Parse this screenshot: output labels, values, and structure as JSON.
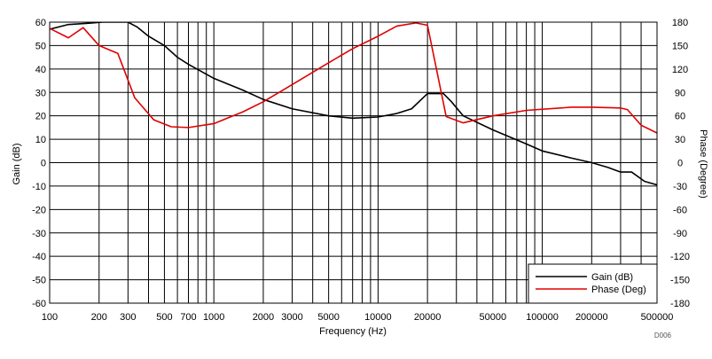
{
  "chart_data": {
    "type": "line",
    "xscale": "log",
    "xlim": [
      100,
      500000
    ],
    "x_ticks": [
      100,
      200,
      300,
      500,
      700,
      1000,
      2000,
      3000,
      5000,
      10000,
      20000,
      50000,
      100000,
      200000,
      500000
    ],
    "x_tick_labels": [
      "100",
      "200",
      "300",
      "500",
      "700",
      "1000",
      "2000",
      "3000",
      "5000",
      "10000",
      "20000",
      "50000",
      "100000",
      "200000",
      "500000"
    ],
    "y_left": {
      "label": "Gain (dB)",
      "lim": [
        -60,
        60
      ],
      "ticks": [
        60,
        50,
        40,
        30,
        20,
        10,
        0,
        -10,
        -20,
        -30,
        -40,
        -50,
        -60
      ]
    },
    "y_right": {
      "label": "Phase (Degree)",
      "lim": [
        -180,
        180
      ],
      "ticks": [
        180,
        150,
        120,
        90,
        60,
        30,
        0,
        -30,
        -60,
        -90,
        -120,
        -150,
        -180
      ]
    },
    "xlabel": "Frequency (Hz)",
    "grid": true,
    "legend_position": "bottom-right",
    "footnote": "D006",
    "series": [
      {
        "name": "Gain (dB)",
        "axis": "left",
        "color": "#000000",
        "points": [
          [
            100,
            57
          ],
          [
            130,
            59
          ],
          [
            170,
            59.5
          ],
          [
            210,
            60
          ],
          [
            300,
            60
          ],
          [
            340,
            58
          ],
          [
            400,
            54
          ],
          [
            500,
            50
          ],
          [
            600,
            45
          ],
          [
            700,
            42
          ],
          [
            1000,
            36
          ],
          [
            1500,
            31
          ],
          [
            2000,
            27
          ],
          [
            3000,
            23
          ],
          [
            5000,
            20
          ],
          [
            7000,
            19
          ],
          [
            10000,
            19.5
          ],
          [
            13000,
            21
          ],
          [
            16000,
            23
          ],
          [
            20000,
            29.5
          ],
          [
            25000,
            29.5
          ],
          [
            28000,
            26
          ],
          [
            33000,
            20
          ],
          [
            50000,
            14
          ],
          [
            80000,
            8
          ],
          [
            100000,
            5
          ],
          [
            150000,
            2
          ],
          [
            200000,
            0
          ],
          [
            250000,
            -2
          ],
          [
            300000,
            -4
          ],
          [
            350000,
            -4
          ],
          [
            420000,
            -8
          ],
          [
            500000,
            -9.5
          ]
        ]
      },
      {
        "name": "Phase (Deg)",
        "axis": "right",
        "color": "#e00000",
        "points": [
          [
            100,
            172
          ],
          [
            130,
            160
          ],
          [
            160,
            173
          ],
          [
            200,
            150
          ],
          [
            260,
            140
          ],
          [
            330,
            83
          ],
          [
            430,
            55
          ],
          [
            550,
            46
          ],
          [
            700,
            45
          ],
          [
            1000,
            50
          ],
          [
            1500,
            65
          ],
          [
            2000,
            78
          ],
          [
            3000,
            100
          ],
          [
            5000,
            128
          ],
          [
            7000,
            146
          ],
          [
            10000,
            162
          ],
          [
            13000,
            175
          ],
          [
            17000,
            179
          ],
          [
            20000,
            176
          ],
          [
            26000,
            59
          ],
          [
            33000,
            51
          ],
          [
            50000,
            60
          ],
          [
            80000,
            67
          ],
          [
            150000,
            71
          ],
          [
            200000,
            71
          ],
          [
            300000,
            70
          ],
          [
            330000,
            68
          ],
          [
            400000,
            48
          ],
          [
            500000,
            38
          ]
        ]
      }
    ]
  }
}
